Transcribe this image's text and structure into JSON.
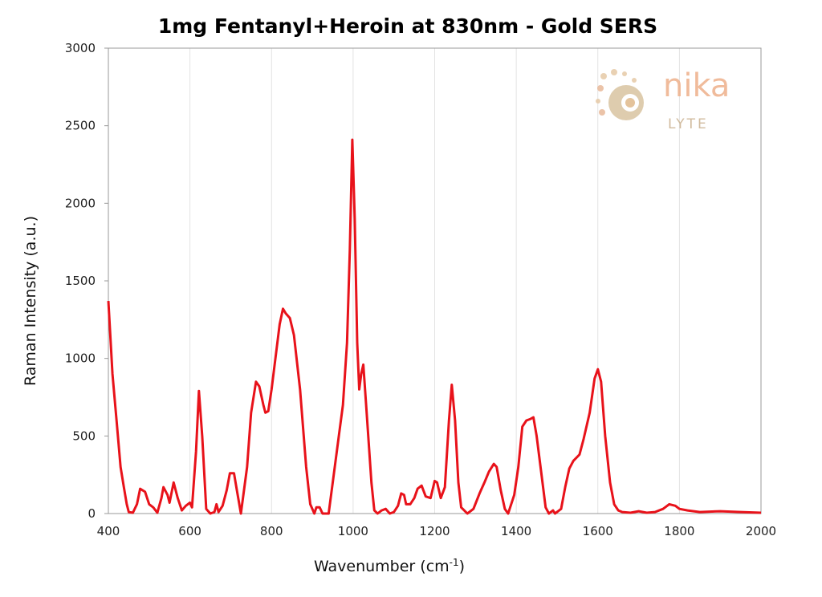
{
  "chart_data": {
    "type": "line",
    "title": "1mg Fentanyl+Heroin at 830nm - Gold SERS",
    "xlabel": "Wavenumber (cm-1)",
    "ylabel": "Raman Intensity (a.u.)",
    "xlim": [
      400,
      2000
    ],
    "ylim": [
      0,
      3000
    ],
    "xticks": [
      400,
      600,
      800,
      1000,
      1200,
      1400,
      1600,
      1800,
      2000
    ],
    "yticks": [
      0,
      500,
      1000,
      1500,
      2000,
      2500,
      3000
    ],
    "grid": "vertical",
    "color": "#e8121a",
    "series": [
      {
        "x": [
          400,
          410,
          420,
          430,
          438,
          445,
          450,
          460,
          470,
          478,
          490,
          500,
          510,
          520,
          530,
          535,
          545,
          550,
          560,
          570,
          580,
          590,
          600,
          605,
          615,
          622,
          630,
          640,
          650,
          660,
          665,
          670,
          680,
          690,
          698,
          708,
          715,
          725,
          740,
          750,
          762,
          770,
          780,
          785,
          792,
          800,
          812,
          820,
          828,
          835,
          845,
          855,
          870,
          885,
          895,
          905,
          910,
          918,
          925,
          940,
          950,
          965,
          975,
          985,
          992,
          998,
          1004,
          1010,
          1015,
          1020,
          1025,
          1032,
          1045,
          1052,
          1060,
          1070,
          1080,
          1090,
          1100,
          1110,
          1118,
          1125,
          1130,
          1140,
          1150,
          1158,
          1168,
          1178,
          1190,
          1200,
          1206,
          1215,
          1225,
          1235,
          1242,
          1250,
          1258,
          1265,
          1280,
          1295,
          1310,
          1322,
          1333,
          1345,
          1352,
          1362,
          1372,
          1380,
          1395,
          1405,
          1415,
          1425,
          1435,
          1442,
          1450,
          1462,
          1472,
          1480,
          1490,
          1495,
          1510,
          1520,
          1530,
          1540,
          1555,
          1565,
          1580,
          1592,
          1600,
          1608,
          1618,
          1630,
          1640,
          1650,
          1660,
          1680,
          1700,
          1720,
          1740,
          1760,
          1775,
          1790,
          1800,
          1820,
          1850,
          1900,
          1950,
          2000
        ],
        "y": [
          1370,
          900,
          600,
          300,
          170,
          60,
          10,
          5,
          60,
          160,
          140,
          60,
          40,
          5,
          100,
          170,
          120,
          70,
          200,
          100,
          20,
          50,
          70,
          40,
          400,
          790,
          500,
          30,
          0,
          10,
          60,
          10,
          50,
          150,
          260,
          260,
          150,
          0,
          300,
          650,
          850,
          820,
          700,
          650,
          660,
          800,
          1050,
          1220,
          1320,
          1290,
          1260,
          1150,
          800,
          300,
          60,
          0,
          40,
          40,
          0,
          0,
          200,
          500,
          700,
          1100,
          1700,
          2410,
          1900,
          1100,
          800,
          900,
          960,
          700,
          200,
          20,
          0,
          20,
          30,
          0,
          10,
          50,
          130,
          120,
          60,
          60,
          100,
          160,
          180,
          110,
          100,
          210,
          200,
          100,
          170,
          600,
          830,
          600,
          200,
          40,
          0,
          30,
          130,
          200,
          270,
          320,
          300,
          150,
          30,
          0,
          120,
          300,
          560,
          600,
          610,
          620,
          500,
          250,
          40,
          0,
          20,
          0,
          30,
          170,
          290,
          340,
          380,
          480,
          650,
          870,
          930,
          850,
          500,
          200,
          60,
          20,
          10,
          5,
          15,
          5,
          10,
          30,
          60,
          50,
          30,
          20,
          10,
          15,
          10,
          5
        ]
      }
    ]
  },
  "logo": {
    "line1": "nika",
    "line2": "LYTE"
  }
}
